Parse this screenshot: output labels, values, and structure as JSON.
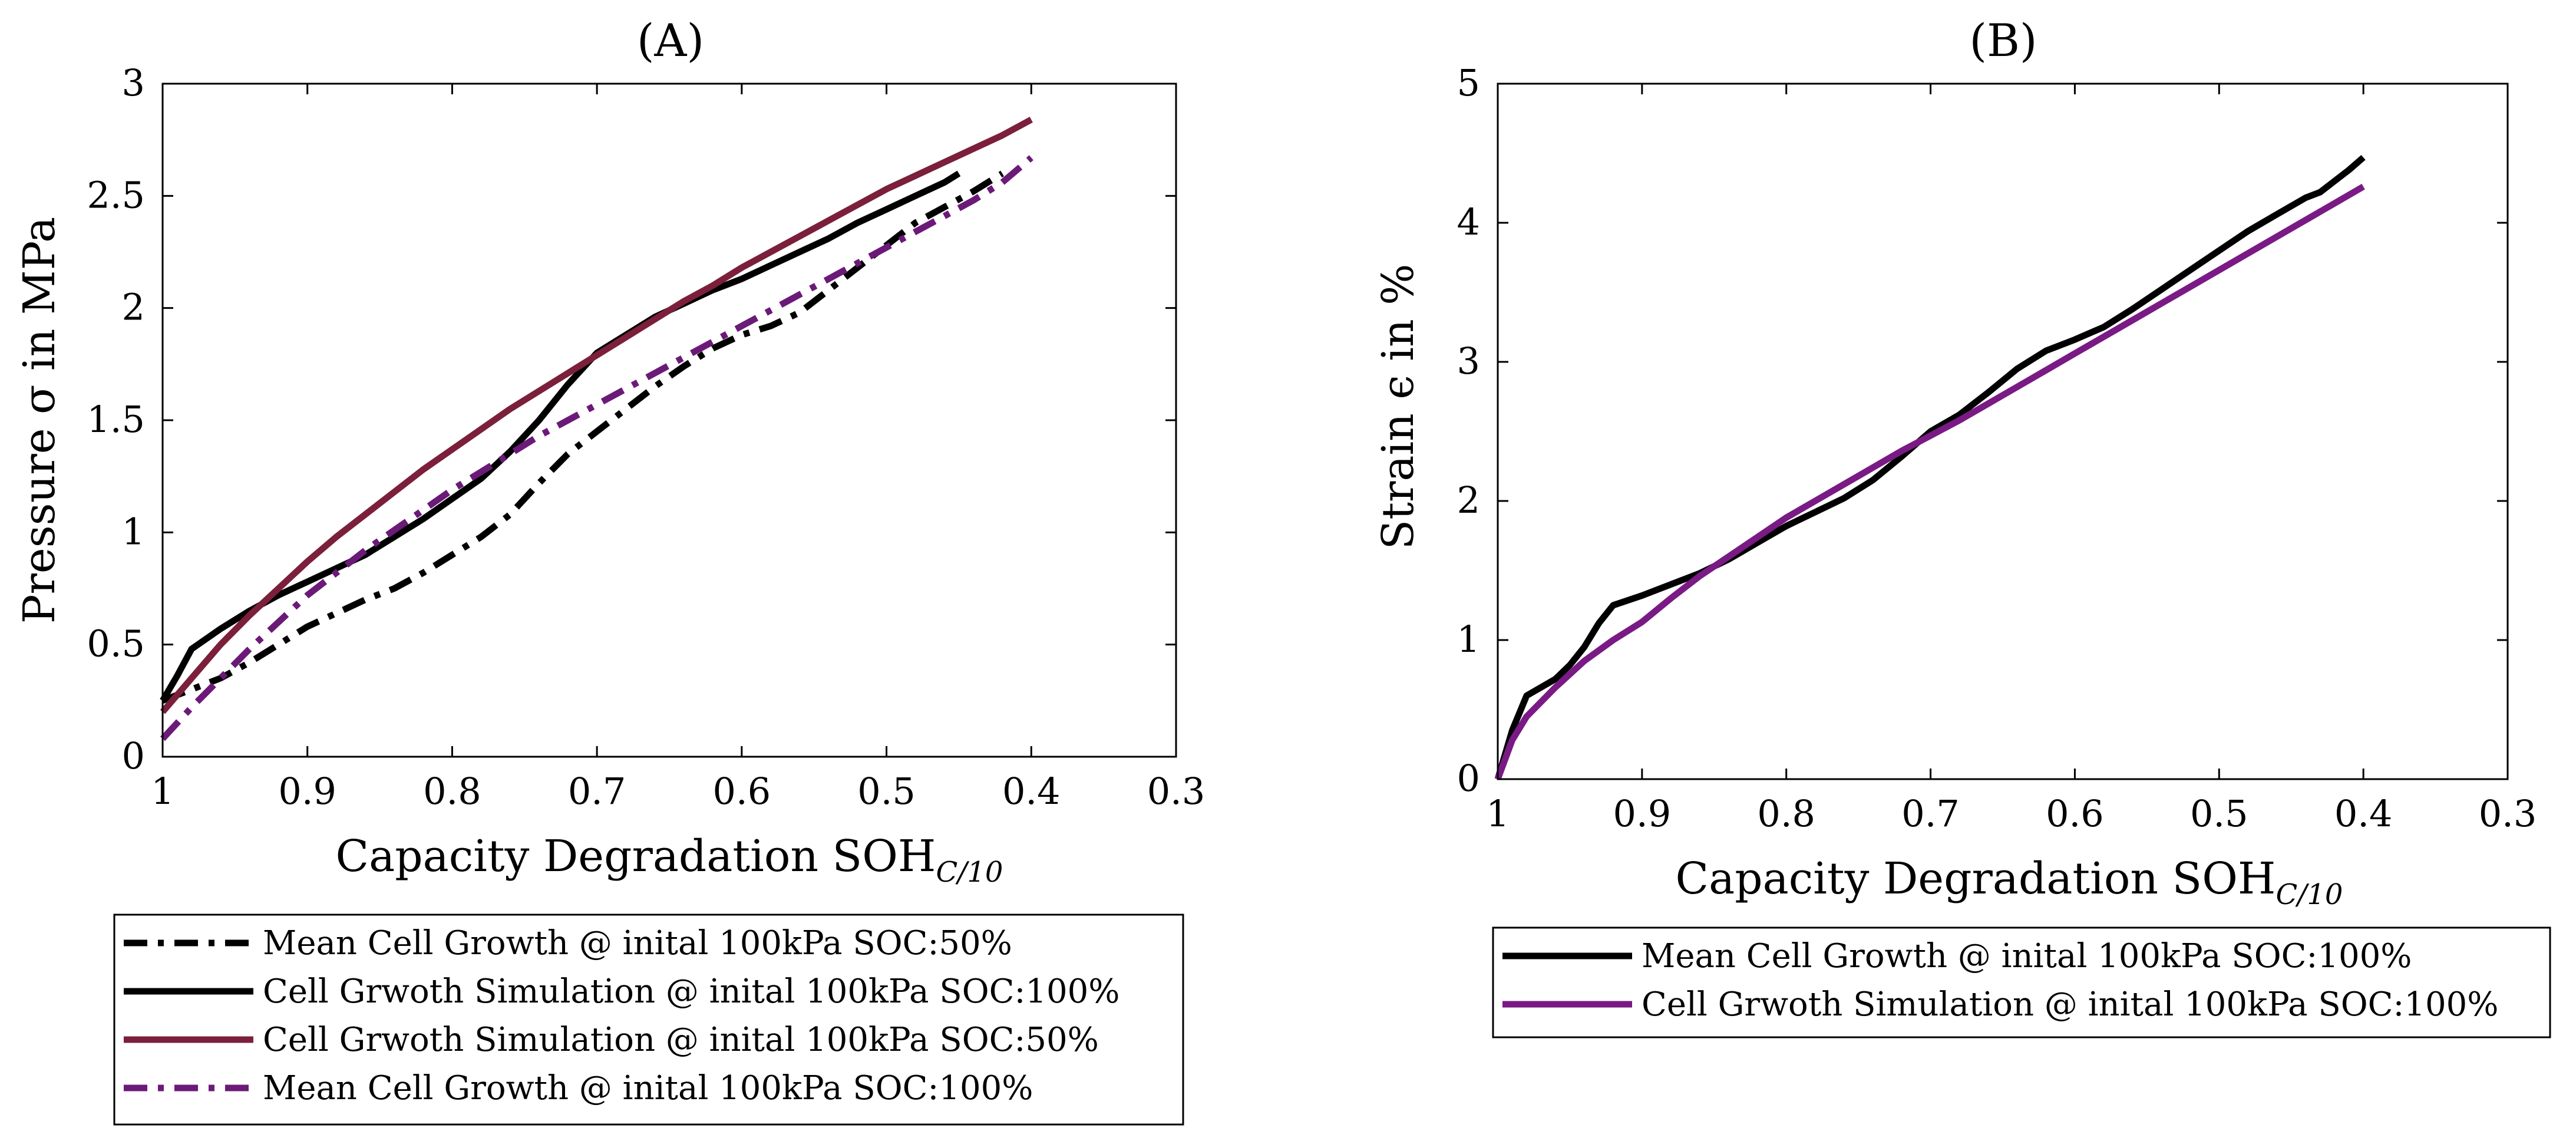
{
  "chart_data": [
    {
      "type": "line",
      "title": "(A)",
      "xlabel": "Capacity Degradation SOH",
      "xlabel_sub": "C/10",
      "ylabel": "Pressure σ in MPa",
      "xlim": [
        1,
        0.3
      ],
      "x_reversed": true,
      "ylim": [
        0,
        3
      ],
      "x_ticks": [
        1,
        0.9,
        0.8,
        0.7,
        0.6,
        0.5,
        0.4,
        0.3
      ],
      "x_tick_labels": [
        "1",
        "0.9",
        "0.8",
        "0.7",
        "0.6",
        "0.5",
        "0.4",
        "0.3"
      ],
      "y_ticks": [
        0,
        0.5,
        1,
        1.5,
        2,
        2.5,
        3
      ],
      "y_tick_labels": [
        "0",
        "0.5",
        "1",
        "1.5",
        "2",
        "2.5",
        "3"
      ],
      "grid": false,
      "legend_position": "below",
      "series": [
        {
          "name": "Mean Cell Growth @ inital 100kPa SOC:50%",
          "color": "#000000",
          "dash": "dashdot",
          "x": [
            1.0,
            0.98,
            0.96,
            0.94,
            0.92,
            0.9,
            0.88,
            0.86,
            0.84,
            0.82,
            0.8,
            0.78,
            0.76,
            0.74,
            0.72,
            0.7,
            0.68,
            0.66,
            0.64,
            0.62,
            0.6,
            0.58,
            0.56,
            0.54,
            0.52,
            0.5,
            0.48,
            0.46,
            0.44,
            0.42
          ],
          "y": [
            0.25,
            0.3,
            0.35,
            0.42,
            0.5,
            0.58,
            0.64,
            0.7,
            0.75,
            0.82,
            0.9,
            0.98,
            1.08,
            1.22,
            1.35,
            1.45,
            1.55,
            1.65,
            1.74,
            1.82,
            1.88,
            1.92,
            1.98,
            2.08,
            2.18,
            2.28,
            2.38,
            2.45,
            2.52,
            2.6
          ]
        },
        {
          "name": "Cell Grwoth Simulation @ inital 100kPa SOC:100%",
          "color": "#000000",
          "dash": "solid",
          "x": [
            1.0,
            0.99,
            0.98,
            0.96,
            0.94,
            0.92,
            0.9,
            0.88,
            0.86,
            0.84,
            0.82,
            0.8,
            0.78,
            0.76,
            0.74,
            0.72,
            0.7,
            0.68,
            0.66,
            0.64,
            0.62,
            0.6,
            0.58,
            0.56,
            0.54,
            0.52,
            0.5,
            0.48,
            0.46,
            0.45
          ],
          "y": [
            0.25,
            0.36,
            0.48,
            0.57,
            0.65,
            0.72,
            0.78,
            0.84,
            0.9,
            0.98,
            1.06,
            1.15,
            1.24,
            1.36,
            1.5,
            1.66,
            1.8,
            1.88,
            1.96,
            2.02,
            2.08,
            2.13,
            2.19,
            2.25,
            2.31,
            2.38,
            2.44,
            2.5,
            2.56,
            2.6
          ]
        },
        {
          "name": "Cell Grwoth Simulation @ inital 100kPa SOC:50%",
          "color": "#7b1f3b",
          "dash": "solid",
          "x": [
            1.0,
            0.98,
            0.96,
            0.94,
            0.92,
            0.9,
            0.88,
            0.86,
            0.84,
            0.82,
            0.8,
            0.78,
            0.76,
            0.74,
            0.72,
            0.7,
            0.68,
            0.66,
            0.64,
            0.62,
            0.6,
            0.58,
            0.56,
            0.54,
            0.52,
            0.5,
            0.48,
            0.46,
            0.44,
            0.42,
            0.4
          ],
          "y": [
            0.2,
            0.35,
            0.5,
            0.63,
            0.75,
            0.87,
            0.98,
            1.08,
            1.18,
            1.28,
            1.37,
            1.46,
            1.55,
            1.63,
            1.71,
            1.79,
            1.87,
            1.95,
            2.03,
            2.1,
            2.18,
            2.25,
            2.32,
            2.39,
            2.46,
            2.53,
            2.59,
            2.65,
            2.71,
            2.77,
            2.84
          ]
        },
        {
          "name": "Mean Cell Growth @ inital 100kPa SOC:100%",
          "color": "#6b1a78",
          "dash": "dashdot",
          "x": [
            1.0,
            0.98,
            0.96,
            0.94,
            0.92,
            0.9,
            0.88,
            0.86,
            0.84,
            0.82,
            0.8,
            0.78,
            0.76,
            0.74,
            0.72,
            0.7,
            0.68,
            0.66,
            0.64,
            0.62,
            0.6,
            0.58,
            0.56,
            0.54,
            0.52,
            0.5,
            0.48,
            0.46,
            0.44,
            0.42,
            0.4
          ],
          "y": [
            0.08,
            0.22,
            0.35,
            0.48,
            0.6,
            0.72,
            0.82,
            0.92,
            1.01,
            1.1,
            1.19,
            1.27,
            1.35,
            1.43,
            1.5,
            1.57,
            1.64,
            1.71,
            1.78,
            1.85,
            1.92,
            1.99,
            2.06,
            2.13,
            2.2,
            2.27,
            2.34,
            2.41,
            2.48,
            2.56,
            2.67
          ]
        }
      ]
    },
    {
      "type": "line",
      "title": "(B)",
      "xlabel": "Capacity Degradation SOH",
      "xlabel_sub": "C/10",
      "ylabel": "Strain ϵ in %",
      "xlim": [
        1,
        0.3
      ],
      "x_reversed": true,
      "ylim": [
        0,
        5
      ],
      "x_ticks": [
        1,
        0.9,
        0.8,
        0.7,
        0.6,
        0.5,
        0.4,
        0.3
      ],
      "x_tick_labels": [
        "1",
        "0.9",
        "0.8",
        "0.7",
        "0.6",
        "0.5",
        "0.4",
        "0.3"
      ],
      "y_ticks": [
        0,
        1,
        2,
        3,
        4,
        5
      ],
      "y_tick_labels": [
        "0",
        "1",
        "2",
        "3",
        "4",
        "5"
      ],
      "grid": false,
      "legend_position": "below",
      "series": [
        {
          "name": "Mean Cell Growth @ inital 100kPa SOC:100%",
          "color": "#000000",
          "dash": "solid",
          "x": [
            1.0,
            0.99,
            0.98,
            0.96,
            0.95,
            0.94,
            0.93,
            0.92,
            0.9,
            0.88,
            0.86,
            0.84,
            0.82,
            0.8,
            0.78,
            0.76,
            0.74,
            0.72,
            0.7,
            0.68,
            0.66,
            0.64,
            0.62,
            0.6,
            0.58,
            0.56,
            0.54,
            0.52,
            0.5,
            0.48,
            0.46,
            0.44,
            0.43,
            0.42,
            0.41,
            0.4
          ],
          "y": [
            0.0,
            0.35,
            0.6,
            0.72,
            0.82,
            0.95,
            1.12,
            1.25,
            1.32,
            1.4,
            1.48,
            1.58,
            1.7,
            1.82,
            1.92,
            2.02,
            2.15,
            2.32,
            2.5,
            2.62,
            2.78,
            2.95,
            3.08,
            3.16,
            3.25,
            3.38,
            3.52,
            3.66,
            3.8,
            3.94,
            4.06,
            4.18,
            4.22,
            4.3,
            4.38,
            4.47
          ]
        },
        {
          "name": "Cell Grwoth Simulation @ inital 100kPa SOC:100%",
          "color": "#7a1a85",
          "dash": "solid",
          "x": [
            1.0,
            0.99,
            0.98,
            0.96,
            0.94,
            0.92,
            0.9,
            0.88,
            0.86,
            0.84,
            0.82,
            0.8,
            0.78,
            0.76,
            0.74,
            0.72,
            0.7,
            0.68,
            0.66,
            0.64,
            0.62,
            0.6,
            0.58,
            0.56,
            0.54,
            0.52,
            0.5,
            0.48,
            0.46,
            0.44,
            0.42,
            0.4
          ],
          "y": [
            0.0,
            0.28,
            0.45,
            0.66,
            0.85,
            1.0,
            1.13,
            1.3,
            1.46,
            1.6,
            1.74,
            1.88,
            2.0,
            2.12,
            2.24,
            2.36,
            2.47,
            2.58,
            2.7,
            2.82,
            2.94,
            3.06,
            3.18,
            3.3,
            3.42,
            3.54,
            3.66,
            3.78,
            3.9,
            4.02,
            4.14,
            4.26
          ]
        }
      ]
    }
  ]
}
